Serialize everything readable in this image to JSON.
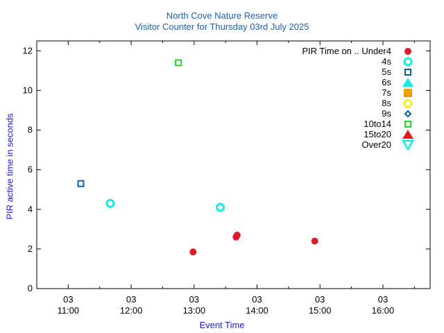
{
  "chart_data": {
    "type": "scatter",
    "title": "North Cove Nature Reserve",
    "subtitle": "Visitor Counter for Thursday 03rd July 2025",
    "xlabel": "Event Time",
    "ylabel": "PIR active time in seconds",
    "x_range": [
      "10:30",
      "16:45"
    ],
    "ylim": [
      0,
      12.5
    ],
    "x_ticks": [
      {
        "time": "11:00",
        "day": "03"
      },
      {
        "time": "12:00",
        "day": "03"
      },
      {
        "time": "13:00",
        "day": "03"
      },
      {
        "time": "14:00",
        "day": "03"
      },
      {
        "time": "15:00",
        "day": "03"
      },
      {
        "time": "16:00",
        "day": "03"
      }
    ],
    "y_ticks": [
      0,
      2,
      4,
      6,
      8,
      10,
      12
    ],
    "grid": false,
    "legend_title": "PIR Time on ..",
    "legend_position": "top-right",
    "series": [
      {
        "name": "Under4",
        "marker": "circle-filled",
        "color": "#dc1c28",
        "points": [
          {
            "x": "12:59",
            "y": 1.85
          },
          {
            "x": "13:40",
            "y": 2.6
          },
          {
            "x": "13:41",
            "y": 2.7
          },
          {
            "x": "14:55",
            "y": 2.4
          }
        ]
      },
      {
        "name": "4s",
        "marker": "circle-open",
        "color": "#17e8e8",
        "points": [
          {
            "x": "11:40",
            "y": 4.3
          },
          {
            "x": "13:25",
            "y": 4.1
          }
        ]
      },
      {
        "name": "5s",
        "marker": "square-open",
        "color": "#0a5fa3",
        "points": [
          {
            "x": "11:12",
            "y": 5.3
          }
        ]
      },
      {
        "name": "6s",
        "marker": "triangle-up-filled",
        "color": "#17e8e8",
        "points": []
      },
      {
        "name": "7s",
        "marker": "square-filled",
        "color": "#e8a00c",
        "points": []
      },
      {
        "name": "8s",
        "marker": "circle-open",
        "color": "#f0f020",
        "points": []
      },
      {
        "name": "9s",
        "marker": "diamond-open",
        "color": "#0a5fa3",
        "points": []
      },
      {
        "name": "10to14",
        "marker": "square-open",
        "color": "#24d424",
        "points": [
          {
            "x": "12:45",
            "y": 11.4
          }
        ]
      },
      {
        "name": "15to20",
        "marker": "triangle-up-filled",
        "color": "#e31a1a",
        "points": []
      },
      {
        "name": "Over20",
        "marker": "triangle-down-open",
        "color": "#17e8e8",
        "points": []
      }
    ]
  }
}
